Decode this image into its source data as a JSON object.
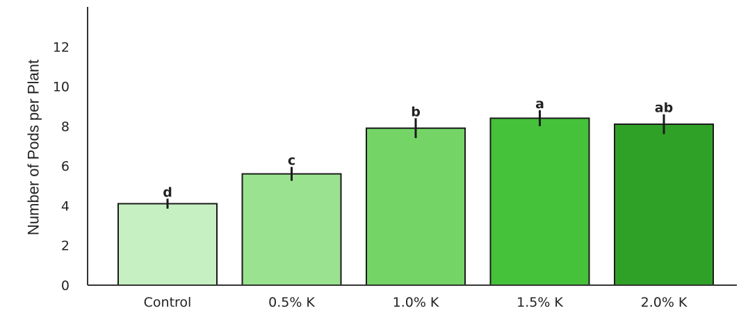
{
  "chart_data": {
    "type": "bar",
    "title": "",
    "xlabel": "",
    "ylabel": "Number of Pods per Plant",
    "ylim": [
      0,
      14
    ],
    "yticks": [
      0,
      2,
      4,
      6,
      8,
      10,
      12
    ],
    "grid": false,
    "categories": [
      "Control",
      "0.5% K",
      "1.0% K",
      "1.5% K",
      "2.0% K"
    ],
    "values": [
      4.1,
      5.6,
      7.9,
      8.4,
      8.1
    ],
    "errors": [
      0.25,
      0.35,
      0.5,
      0.4,
      0.5
    ],
    "significance_letters": [
      "d",
      "c",
      "b",
      "a",
      "ab"
    ],
    "colors": [
      "#c6f0c2",
      "#9be290",
      "#74d566",
      "#45c23a",
      "#2fa127"
    ]
  }
}
